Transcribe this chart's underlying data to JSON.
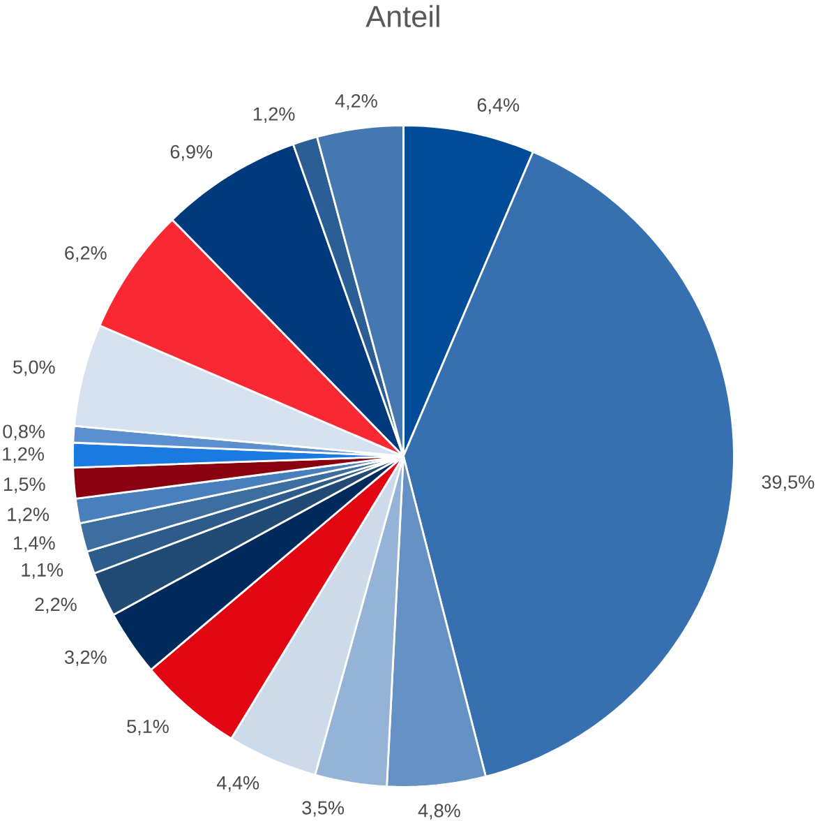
{
  "chart_data": {
    "type": "pie",
    "title": "Anteil",
    "categories": [
      null,
      null,
      null,
      null,
      null,
      null,
      null,
      null,
      null,
      null,
      null,
      null,
      null,
      null,
      null,
      null,
      null,
      null,
      null
    ],
    "values": [
      6.4,
      39.5,
      4.8,
      3.5,
      4.4,
      5.1,
      3.2,
      2.2,
      1.1,
      1.4,
      1.2,
      1.5,
      1.2,
      0.8,
      5.0,
      6.2,
      6.9,
      1.2,
      4.2
    ],
    "value_labels": [
      "6,4%",
      "39,5%",
      "4,8%",
      "3,5%",
      "4,4%",
      "5,1%",
      "3,2%",
      "2,2%",
      "1,1%",
      "1,4%",
      "1,2%",
      "1,5%",
      "1,2%",
      "0,8%",
      "5,0%",
      "6,2%",
      "6,9%",
      "1,2%",
      "4,2%"
    ],
    "colors": [
      "#004c99",
      "#3670b0",
      "#6591c4",
      "#95b3d7",
      "#ccdaea",
      "#e20613",
      "#002a5c",
      "#214a75",
      "#2e5c8a",
      "#3d6ea0",
      "#4a7fbd",
      "#8b0010",
      "#1a7ae0",
      "#5b8fd0",
      "#d6e2f0",
      "#fa2832",
      "#003a7c",
      "#2b5e94",
      "#4577b0"
    ]
  }
}
